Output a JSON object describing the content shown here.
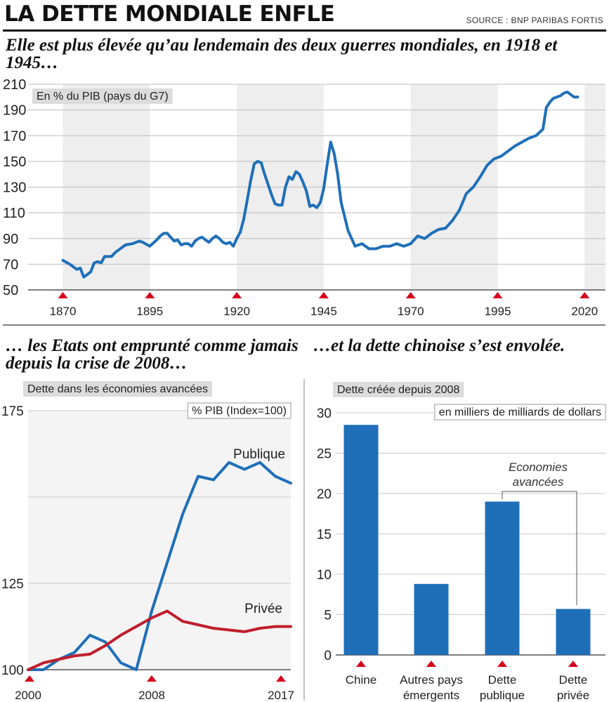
{
  "header": {
    "title": "LA DETTE MONDIALE ENFLE",
    "source": "SOURCE : BNP PARIBAS FORTIS"
  },
  "headlines": {
    "top": "Elle est plus élevée qu’au lendemain des deux guerres mondiales, en 1918 et 1945…",
    "bottom_left": "… les Etats ont emprunté comme jamais depuis la crise de 2008…",
    "bottom_right": "…et la dette chinoise s’est envolée."
  },
  "colors": {
    "blue": "#1f6fb8",
    "red": "#c01e2b",
    "marker_red": "#d6001c",
    "band_gray": "#eeeeee",
    "label_box": "#dcdcdc"
  },
  "chart_data": [
    {
      "type": "line",
      "label": "En % du PIB (pays du G7)",
      "ylim": [
        50,
        210
      ],
      "yticks": [
        50,
        70,
        90,
        110,
        130,
        150,
        170,
        190,
        210
      ],
      "xlim": [
        1860,
        2026
      ],
      "xticks": [
        1870,
        1895,
        1920,
        1945,
        1970,
        1995,
        2020
      ],
      "grid": "horizontal",
      "series": [
        {
          "x": [
            1870,
            1872,
            1874,
            1875,
            1876,
            1878,
            1879,
            1880,
            1881,
            1882,
            1884,
            1885,
            1886,
            1888,
            1890,
            1892,
            1893,
            1895,
            1897,
            1898,
            1899,
            1900,
            1901,
            1902,
            1903,
            1904,
            1905,
            1906,
            1907,
            1908,
            1909,
            1910,
            1911,
            1912,
            1913,
            1914,
            1915,
            1916,
            1917,
            1918,
            1919,
            1920,
            1921,
            1922,
            1923,
            1924,
            1925,
            1926,
            1927,
            1928,
            1929,
            1930,
            1931,
            1932,
            1933,
            1934,
            1935,
            1936,
            1937,
            1938,
            1939,
            1940,
            1941,
            1942,
            1943,
            1944,
            1945,
            1946,
            1947,
            1948,
            1949,
            1950,
            1952,
            1954,
            1956,
            1958,
            1960,
            1962,
            1964,
            1966,
            1968,
            1970,
            1972,
            1974,
            1976,
            1978,
            1980,
            1982,
            1984,
            1986,
            1988,
            1990,
            1992,
            1994,
            1996,
            1998,
            2000,
            2002,
            2004,
            2006,
            2008,
            2009,
            2010,
            2011,
            2012,
            2013,
            2014,
            2015,
            2016,
            2017,
            2018
          ],
          "y": [
            73,
            70,
            66,
            67,
            60,
            64,
            71,
            72,
            71,
            76,
            76,
            79,
            81,
            85,
            86,
            88,
            87,
            84,
            89,
            92,
            94,
            94,
            91,
            88,
            89,
            85,
            86,
            86,
            84,
            88,
            90,
            91,
            89,
            87,
            90,
            92,
            90,
            87,
            86,
            87,
            84,
            90,
            95,
            105,
            120,
            135,
            148,
            150,
            149,
            140,
            132,
            124,
            117,
            116,
            116,
            130,
            138,
            136,
            142,
            140,
            134,
            127,
            115,
            116,
            114,
            118,
            129,
            148,
            165,
            156,
            140,
            118,
            96,
            84,
            86,
            82,
            82,
            84,
            84,
            86,
            84,
            86,
            92,
            90,
            94,
            97,
            98,
            104,
            112,
            125,
            130,
            138,
            147,
            152,
            154,
            158,
            162,
            165,
            168,
            170,
            175,
            192,
            196,
            199,
            200,
            201,
            203,
            204,
            202,
            200,
            200
          ]
        }
      ]
    },
    {
      "type": "line",
      "label": "Dette dans les économies avancées",
      "unit_label": "% PIB (Index=100)",
      "ylim": [
        100,
        175
      ],
      "yticks": [
        100,
        125,
        175
      ],
      "xlim": [
        2000,
        2017
      ],
      "xticks": [
        2000,
        2008,
        2017
      ],
      "series": [
        {
          "name": "Publique",
          "x": [
            2000,
            2001,
            2002,
            2003,
            2004,
            2005,
            2006,
            2007,
            2008,
            2009,
            2010,
            2011,
            2012,
            2013,
            2014,
            2015,
            2016,
            2017
          ],
          "y": [
            100,
            100,
            103,
            105,
            110,
            108,
            102,
            100,
            117,
            131,
            145,
            156,
            155,
            160,
            158,
            160,
            156,
            154
          ]
        },
        {
          "name": "Privée",
          "x": [
            2000,
            2001,
            2002,
            2003,
            2004,
            2005,
            2006,
            2007,
            2008,
            2009,
            2010,
            2011,
            2012,
            2013,
            2014,
            2015,
            2016,
            2017
          ],
          "y": [
            100,
            102,
            103,
            104,
            104.5,
            107,
            110,
            112.5,
            115,
            117,
            114,
            113,
            112,
            111.5,
            111,
            112,
            112.5,
            112.5
          ]
        }
      ]
    },
    {
      "type": "bar",
      "label": "Dette créée depuis 2008",
      "unit_label": "en milliers de milliards de dollars",
      "annotation": "Economies avancées",
      "ylim": [
        0,
        30
      ],
      "yticks": [
        0,
        5,
        10,
        15,
        20,
        25,
        30
      ],
      "categories": [
        "Chine",
        "Autres pays émergents",
        "Dette publique",
        "Dette privée"
      ],
      "values": [
        28.5,
        8.8,
        19,
        5.7
      ]
    }
  ]
}
